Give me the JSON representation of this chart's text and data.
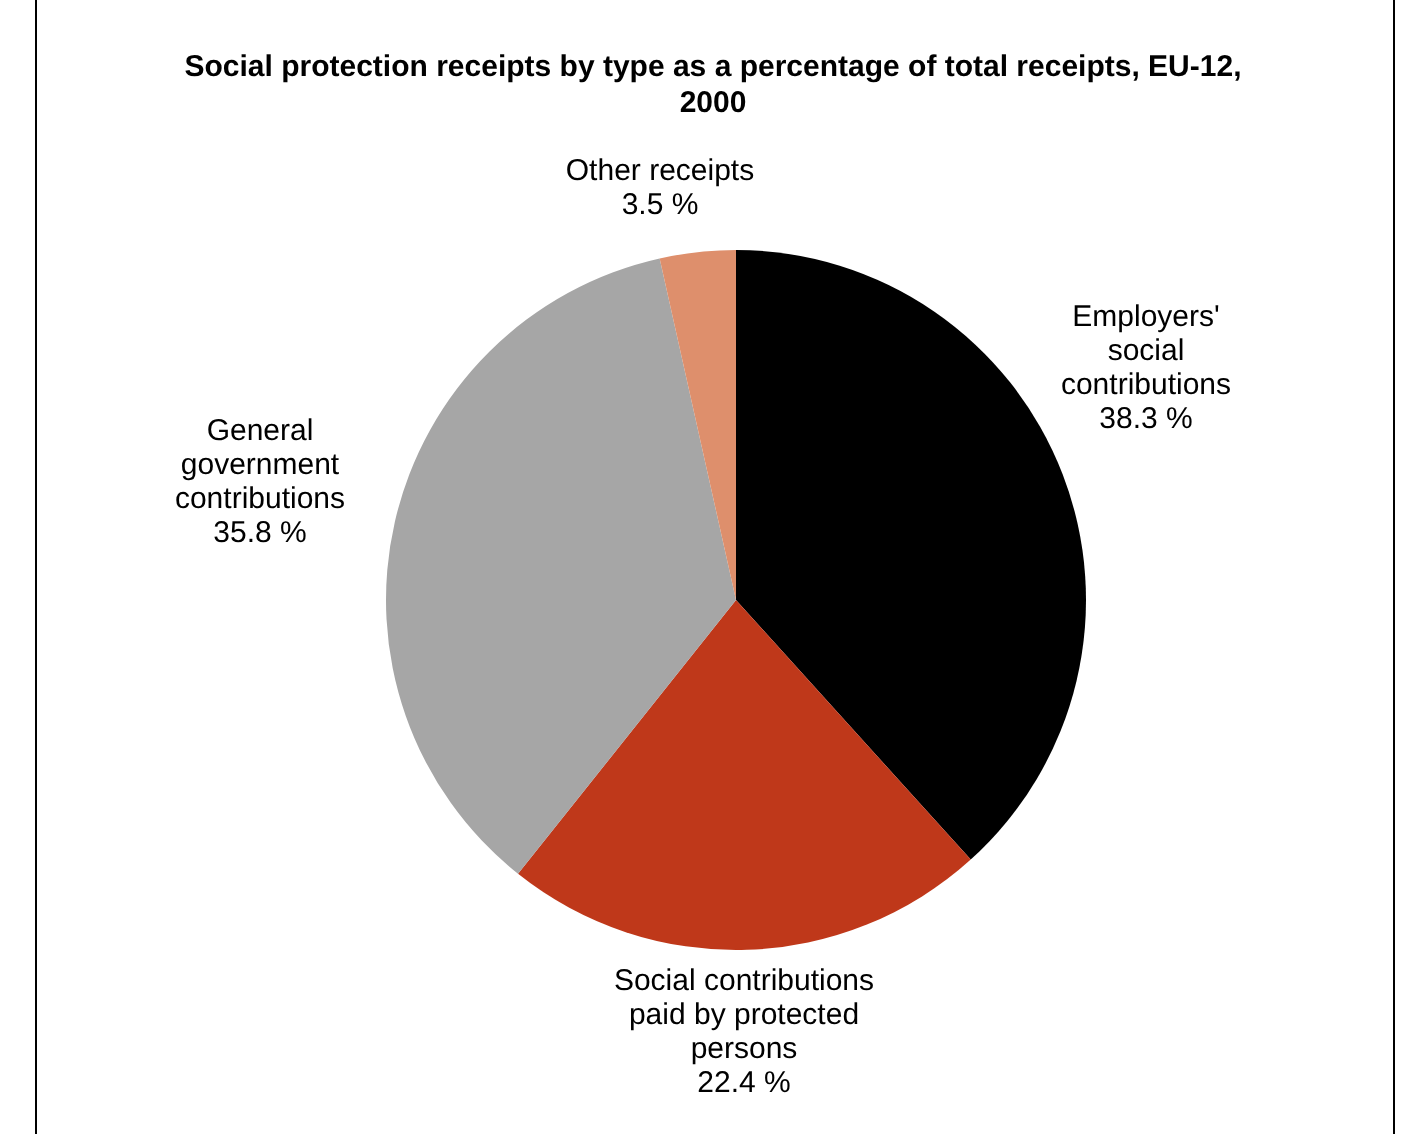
{
  "chart_data": {
    "type": "pie",
    "title": "Social protection receipts by type as a percentage of total receipts, EU-12, 2000",
    "categories": [
      "Employers' social contributions",
      "Social contributions paid by protected persons",
      "General government contributions",
      "Other receipts"
    ],
    "values": [
      38.3,
      22.4,
      35.8,
      3.5
    ],
    "colors": [
      "#000000",
      "#bf381a",
      "#a6a6a6",
      "#de8f6c"
    ],
    "value_labels": [
      "38.3 %",
      "22.4 %",
      "35.8 %",
      "3.5 %"
    ]
  }
}
